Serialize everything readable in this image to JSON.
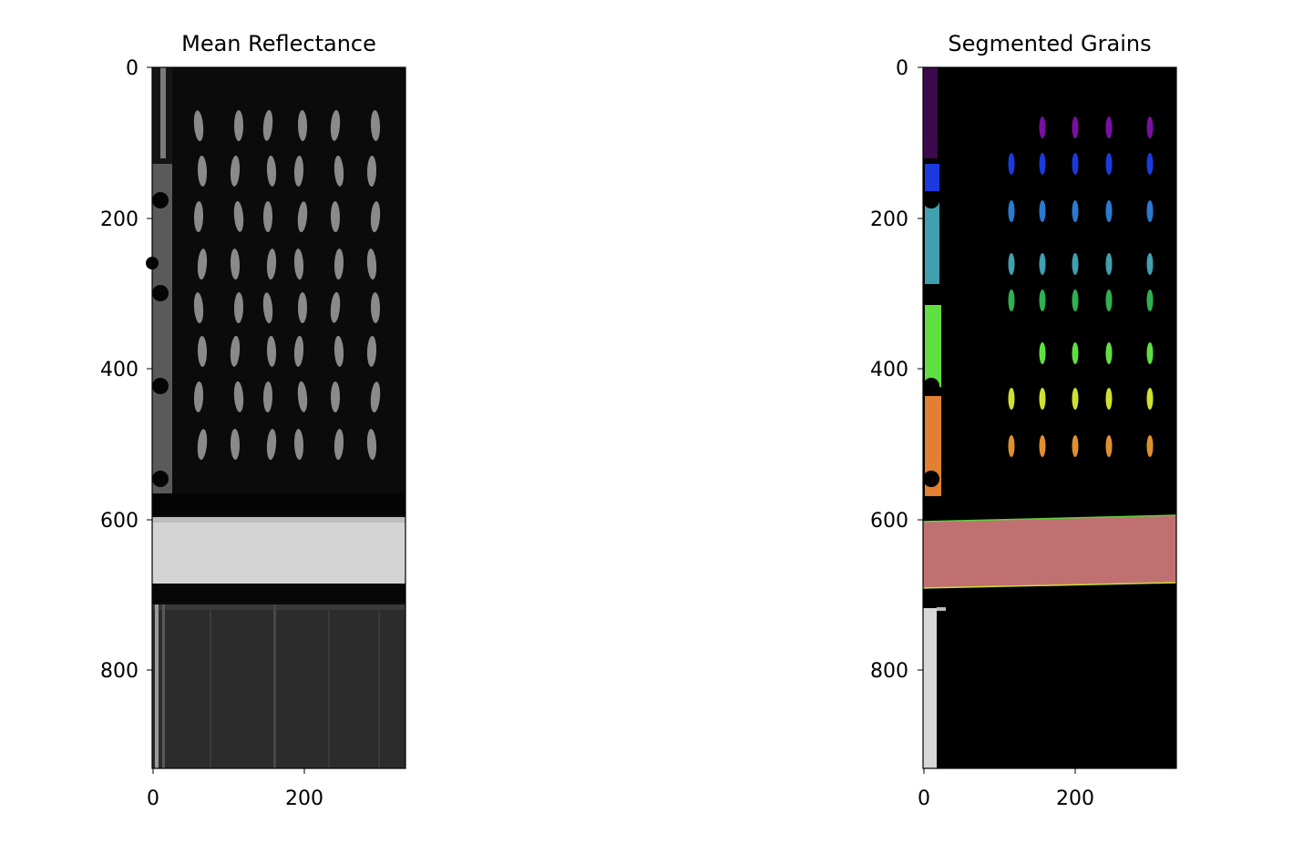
{
  "panels": [
    {
      "title": "Mean Reflectance",
      "x_ticks": [
        "0",
        "200"
      ],
      "y_ticks": [
        "0",
        "200",
        "400",
        "600",
        "800"
      ],
      "image": "grayscale hyperspectral mean-reflectance image: rice grains on a dark tray above a bright white reference strip"
    },
    {
      "title": "Segmented Grains",
      "x_ticks": [
        "0",
        "200"
      ],
      "y_ticks": [
        "0",
        "200",
        "400",
        "600",
        "800"
      ],
      "image": "label map of segmented grains colored by a rainbow colormap on black background"
    }
  ],
  "chart_data": [
    {
      "type": "image",
      "title": "Mean Reflectance",
      "xlabel": "",
      "ylabel": "",
      "xlim": [
        0,
        335
      ],
      "ylim": [
        930,
        0
      ],
      "x_ticks": [
        0,
        200
      ],
      "y_ticks": [
        0,
        200,
        400,
        600,
        800
      ]
    },
    {
      "type": "image",
      "title": "Segmented Grains",
      "xlabel": "",
      "ylabel": "",
      "xlim": [
        0,
        335
      ],
      "ylim": [
        930,
        0
      ],
      "x_ticks": [
        0,
        200
      ],
      "y_ticks": [
        0,
        200,
        400,
        600,
        800
      ]
    }
  ],
  "colors": {
    "background": "#ffffff",
    "tray": "#0c0c0c",
    "grain": "#8a8a8a",
    "reference_strip": "#d8d8d8",
    "segmented_band": "#c07070",
    "label_palette": [
      "#3a0a4a",
      "#7a10a0",
      "#1a3ae0",
      "#2a7ad0",
      "#40a0b0",
      "#30b050",
      "#60e040",
      "#d0e030",
      "#e09030",
      "#e03020"
    ]
  }
}
